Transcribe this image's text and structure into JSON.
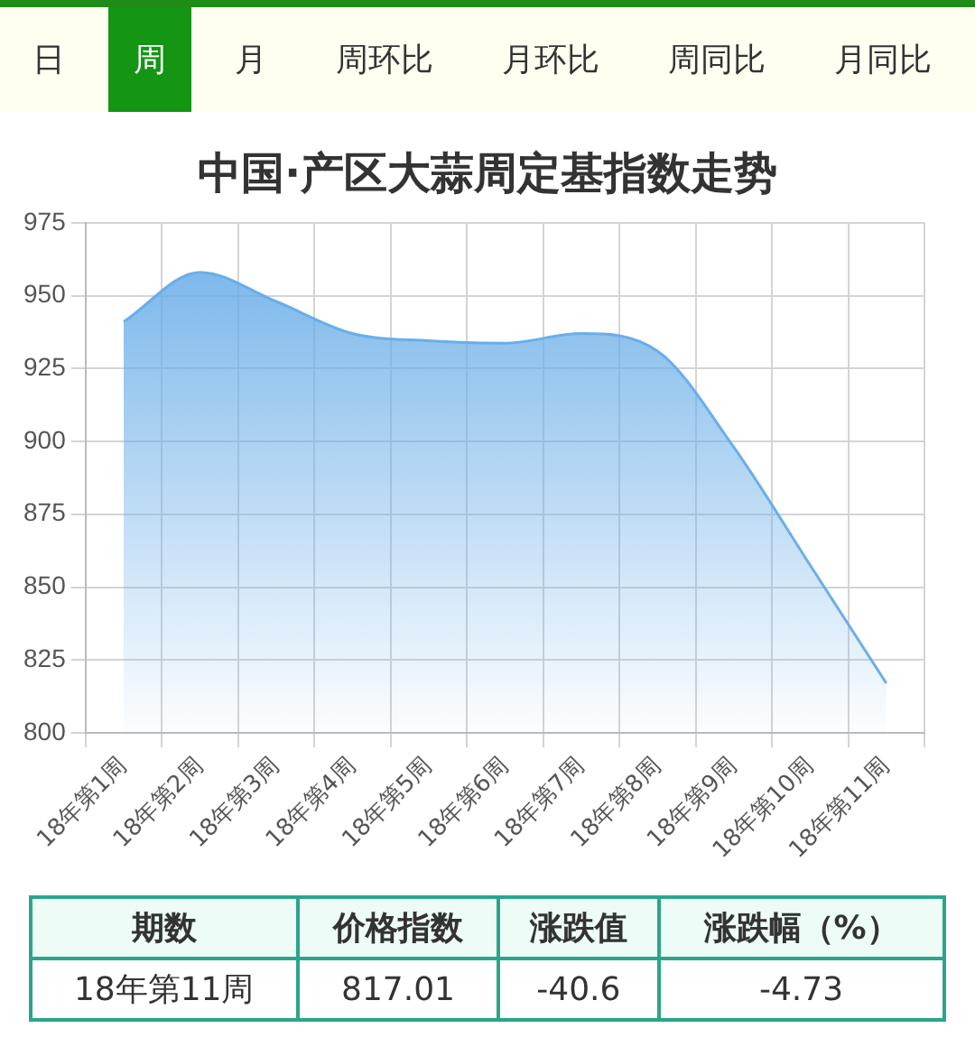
{
  "chart_data": {
    "type": "area",
    "title": "中国·产区大蒜周定基指数走势",
    "categories": [
      "18年第1周",
      "18年第2周",
      "18年第3周",
      "18年第4周",
      "18年第5周",
      "18年第6周",
      "18年第7周",
      "18年第8周",
      "18年第9周",
      "18年第10周",
      "18年第11周"
    ],
    "series": [
      {
        "color": "#6aaee8",
        "values": [
          941,
          958,
          948,
          937,
          934.5,
          933.7,
          937,
          931,
          898,
          857.6,
          817.01
        ]
      }
    ],
    "ylim": [
      800,
      975
    ],
    "yticks": [
      800,
      825,
      850,
      875,
      900,
      925,
      950,
      975
    ],
    "grid": true,
    "legend": false,
    "marker": "none",
    "line_style": "solid",
    "annotations": [
      "日",
      "周",
      "月",
      "周环比",
      "月环比",
      "周同比",
      "月同比",
      "期数",
      "价格指数",
      "涨跌值",
      "涨跌幅（%）",
      "18年第11周",
      "817.01",
      "-40.6",
      "-4.73"
    ]
  }
}
